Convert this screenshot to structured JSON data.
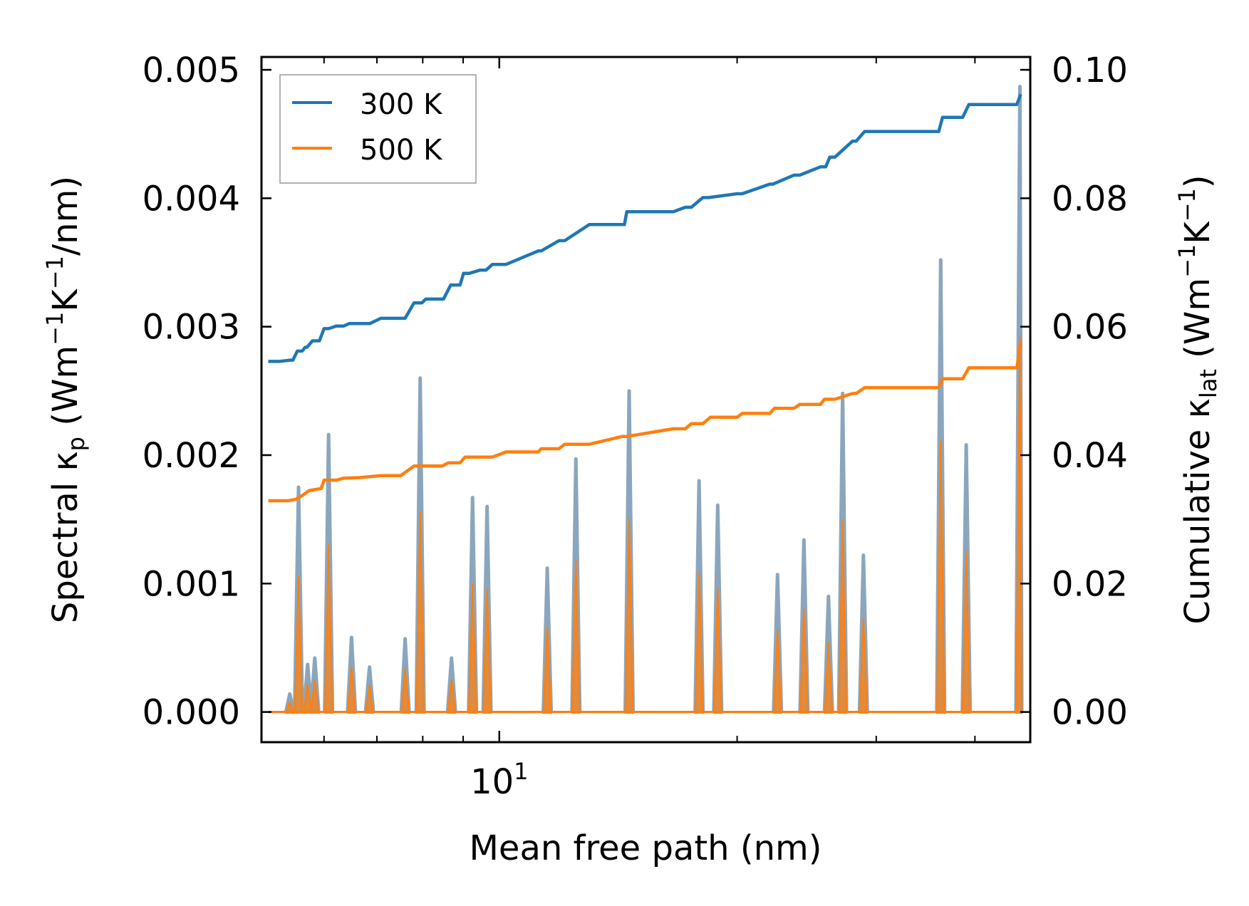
{
  "chart_data": {
    "type": "line",
    "xscale": "log",
    "xlim": [
      5.0,
      47.0
    ],
    "ylim_left": [
      -0.000235,
      0.0051
    ],
    "ylim_right": [
      -0.0047,
      0.102
    ],
    "xlabel": "Mean free path (nm)",
    "ylabel_left": {
      "prefix": "Spectral κ",
      "subscript": "p",
      "unit_open": " (Wm",
      "exp1": "−1",
      "mid": "K",
      "exp2": "−1",
      "unit_close": "/nm)"
    },
    "ylabel_right": {
      "prefix": "Cumulative κ",
      "subscript": "lat",
      "unit_open": " (Wm",
      "exp1": "−1",
      "mid": "K",
      "exp2": "−1",
      "unit_close": ")"
    },
    "x_tick_labels": [
      {
        "base": "10",
        "exp": "1",
        "value": 10
      }
    ],
    "x_minor_ticks": [
      6,
      7,
      8,
      9,
      20,
      30,
      40
    ],
    "y_left_ticks": [
      "0.000",
      "0.001",
      "0.002",
      "0.003",
      "0.004",
      "0.005"
    ],
    "y_left_tick_values": [
      0,
      0.001,
      0.002,
      0.003,
      0.004,
      0.005
    ],
    "y_right_ticks": [
      "0.00",
      "0.02",
      "0.04",
      "0.06",
      "0.08",
      "0.10"
    ],
    "y_right_tick_values": [
      0,
      0.02,
      0.04,
      0.06,
      0.08,
      0.1
    ],
    "legend": {
      "position": "top-left",
      "entries": [
        "300 K",
        "500 K"
      ]
    },
    "colors": {
      "300K": "#1f77b4",
      "500K": "#ff7f0e",
      "spectral_edge": "#8aa6be"
    },
    "series": [
      {
        "name": "300 K",
        "kind": "cumulative",
        "axis": "right",
        "color": "#1f77b4",
        "x": [
          5.1,
          5.27,
          5.44,
          5.48,
          5.55,
          5.63,
          5.68,
          5.71,
          5.8,
          5.92,
          6.0,
          6.08,
          6.22,
          6.35,
          6.46,
          6.66,
          6.86,
          7.08,
          7.6,
          7.8,
          7.98,
          8.07,
          8.5,
          8.68,
          8.92,
          9.01,
          9.16,
          9.45,
          9.62,
          9.8,
          10.2,
          11.2,
          11.3,
          11.9,
          12.1,
          13.0,
          14.4,
          14.5,
          16.6,
          17.2,
          17.5,
          18.1,
          18.4,
          20.0,
          20.3,
          22.0,
          22.2,
          23.6,
          24.0,
          25.5,
          25.9,
          26.2,
          26.6,
          28.0,
          28.3,
          29.0,
          36.0,
          36.4,
          38.6,
          39.3,
          45.2,
          45.7
        ],
        "values": [
          0.0546,
          0.0546,
          0.0548,
          0.0548,
          0.0562,
          0.0562,
          0.0568,
          0.0568,
          0.0578,
          0.0578,
          0.0597,
          0.0597,
          0.0601,
          0.0601,
          0.0605,
          0.0605,
          0.0605,
          0.0613,
          0.0613,
          0.0637,
          0.0637,
          0.0643,
          0.0643,
          0.0665,
          0.0665,
          0.0683,
          0.0683,
          0.0688,
          0.0688,
          0.0697,
          0.0697,
          0.0718,
          0.0718,
          0.0734,
          0.0734,
          0.0759,
          0.0759,
          0.0779,
          0.0779,
          0.0786,
          0.0786,
          0.0801,
          0.0801,
          0.0807,
          0.0807,
          0.0822,
          0.0822,
          0.0836,
          0.0836,
          0.0849,
          0.0849,
          0.0864,
          0.0864,
          0.0889,
          0.0889,
          0.0904,
          0.0904,
          0.0926,
          0.0926,
          0.0946,
          0.0946,
          0.0962
        ]
      },
      {
        "name": "500 K",
        "kind": "cumulative",
        "axis": "right",
        "color": "#ff7f0e",
        "x": [
          5.1,
          5.4,
          5.52,
          5.63,
          5.75,
          5.95,
          6.0,
          6.22,
          6.35,
          6.66,
          7.08,
          7.5,
          7.8,
          8.47,
          8.62,
          8.92,
          9.05,
          9.8,
          10.2,
          11.2,
          11.3,
          11.9,
          12.1,
          13.0,
          14.3,
          14.5,
          16.6,
          17.2,
          17.5,
          18.1,
          18.5,
          20.0,
          20.3,
          22.0,
          22.3,
          23.6,
          24.0,
          25.5,
          25.8,
          26.6,
          28.0,
          28.3,
          29.0,
          36.0,
          36.4,
          38.6,
          39.3,
          45.2,
          45.7
        ],
        "values": [
          0.0329,
          0.0329,
          0.0331,
          0.0337,
          0.0345,
          0.0348,
          0.0361,
          0.0361,
          0.0364,
          0.0365,
          0.0368,
          0.0368,
          0.0383,
          0.0383,
          0.0388,
          0.0388,
          0.0397,
          0.0397,
          0.0405,
          0.0405,
          0.041,
          0.041,
          0.0417,
          0.0417,
          0.0429,
          0.0429,
          0.0441,
          0.0441,
          0.0449,
          0.0449,
          0.0459,
          0.0459,
          0.0465,
          0.0465,
          0.0473,
          0.0473,
          0.0479,
          0.0479,
          0.0487,
          0.0487,
          0.0496,
          0.0496,
          0.0505,
          0.0505,
          0.0519,
          0.0519,
          0.0536,
          0.0536,
          0.0576
        ]
      },
      {
        "name": "300 K spectral",
        "kind": "spectral",
        "axis": "left",
        "color": "#1f77b4",
        "peaks": [
          {
            "x": 5.43,
            "y": 0.00014
          },
          {
            "x": 5.57,
            "y": 0.00175
          },
          {
            "x": 5.72,
            "y": 0.00037
          },
          {
            "x": 5.84,
            "y": 0.00042
          },
          {
            "x": 6.08,
            "y": 0.00216
          },
          {
            "x": 6.5,
            "y": 0.00058
          },
          {
            "x": 6.85,
            "y": 0.00035
          },
          {
            "x": 7.6,
            "y": 0.00057
          },
          {
            "x": 7.94,
            "y": 0.0026
          },
          {
            "x": 8.7,
            "y": 0.00042
          },
          {
            "x": 9.25,
            "y": 0.00167
          },
          {
            "x": 9.65,
            "y": 0.0016
          },
          {
            "x": 11.5,
            "y": 0.00112
          },
          {
            "x": 12.5,
            "y": 0.00197
          },
          {
            "x": 14.6,
            "y": 0.0025
          },
          {
            "x": 17.9,
            "y": 0.0018
          },
          {
            "x": 18.9,
            "y": 0.00161
          },
          {
            "x": 22.5,
            "y": 0.00107
          },
          {
            "x": 24.3,
            "y": 0.00134
          },
          {
            "x": 26.1,
            "y": 0.0009
          },
          {
            "x": 27.2,
            "y": 0.00248
          },
          {
            "x": 28.9,
            "y": 0.00122
          },
          {
            "x": 36.2,
            "y": 0.00352
          },
          {
            "x": 39.0,
            "y": 0.00208
          },
          {
            "x": 45.6,
            "y": 0.00487
          }
        ]
      },
      {
        "name": "500 K spectral",
        "kind": "spectral",
        "axis": "left",
        "color": "#ff7f0e",
        "peaks": [
          {
            "x": 5.43,
            "y": 8e-05
          },
          {
            "x": 5.57,
            "y": 0.00105
          },
          {
            "x": 5.72,
            "y": 0.00022
          },
          {
            "x": 5.84,
            "y": 0.00025
          },
          {
            "x": 6.08,
            "y": 0.0013
          },
          {
            "x": 6.5,
            "y": 0.00035
          },
          {
            "x": 6.85,
            "y": 0.00021
          },
          {
            "x": 7.6,
            "y": 0.00034
          },
          {
            "x": 7.94,
            "y": 0.00156
          },
          {
            "x": 8.7,
            "y": 0.00025
          },
          {
            "x": 9.25,
            "y": 0.001
          },
          {
            "x": 9.65,
            "y": 0.00096
          },
          {
            "x": 11.5,
            "y": 0.00067
          },
          {
            "x": 12.5,
            "y": 0.00118
          },
          {
            "x": 14.6,
            "y": 0.0015
          },
          {
            "x": 17.9,
            "y": 0.00108
          },
          {
            "x": 18.9,
            "y": 0.00097
          },
          {
            "x": 22.5,
            "y": 0.00064
          },
          {
            "x": 24.3,
            "y": 0.0008
          },
          {
            "x": 26.1,
            "y": 0.00054
          },
          {
            "x": 27.2,
            "y": 0.00149
          },
          {
            "x": 28.9,
            "y": 0.00073
          },
          {
            "x": 36.2,
            "y": 0.00211
          },
          {
            "x": 39.0,
            "y": 0.00125
          },
          {
            "x": 45.6,
            "y": 0.00292
          }
        ]
      }
    ]
  }
}
